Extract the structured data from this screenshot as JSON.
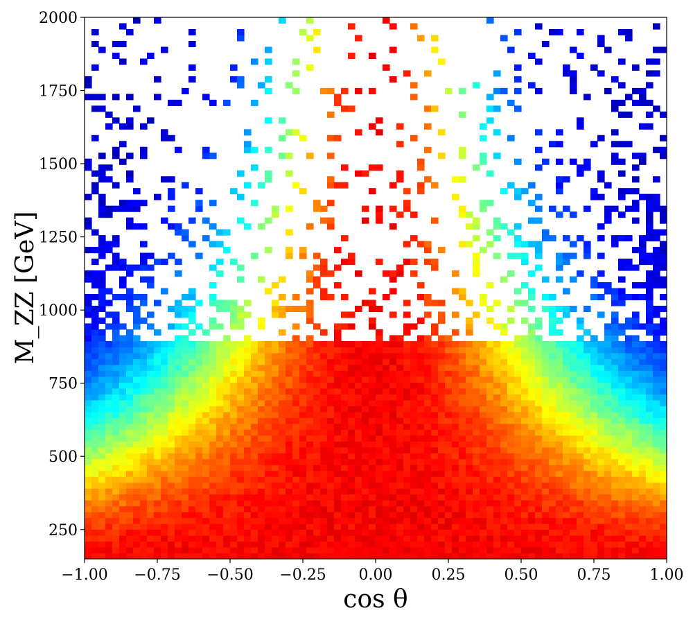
{
  "chart_data": {
    "type": "heatmap",
    "xlabel": "cos θ",
    "ylabel": "M_ZZ [GeV]",
    "xlim": [
      -1.0,
      1.0
    ],
    "ylim": [
      150,
      2000
    ],
    "x_ticks": [
      -1.0,
      -0.75,
      -0.5,
      -0.25,
      0.0,
      0.25,
      0.5,
      0.75,
      1.0
    ],
    "x_tick_labels": [
      "−1.00",
      "−0.75",
      "−0.50",
      "−0.25",
      "0.00",
      "0.25",
      "0.50",
      "0.75",
      "1.00"
    ],
    "y_ticks": [
      250,
      500,
      750,
      1000,
      1250,
      1500,
      1750,
      2000
    ],
    "y_tick_labels": [
      "250",
      "500",
      "750",
      "1000",
      "1250",
      "1500",
      "1750",
      "2000"
    ],
    "colormap": "jet",
    "grid": false,
    "legend": "none",
    "bins": {
      "x": 84,
      "y": 92
    },
    "cell_description": "2D histogram: cells near cosθ = 0 are red/orange (highest density), shading through yellow, cyan and blue toward cosθ = ±1; above ~950 GeV the central region becomes sparse and scattered"
  }
}
